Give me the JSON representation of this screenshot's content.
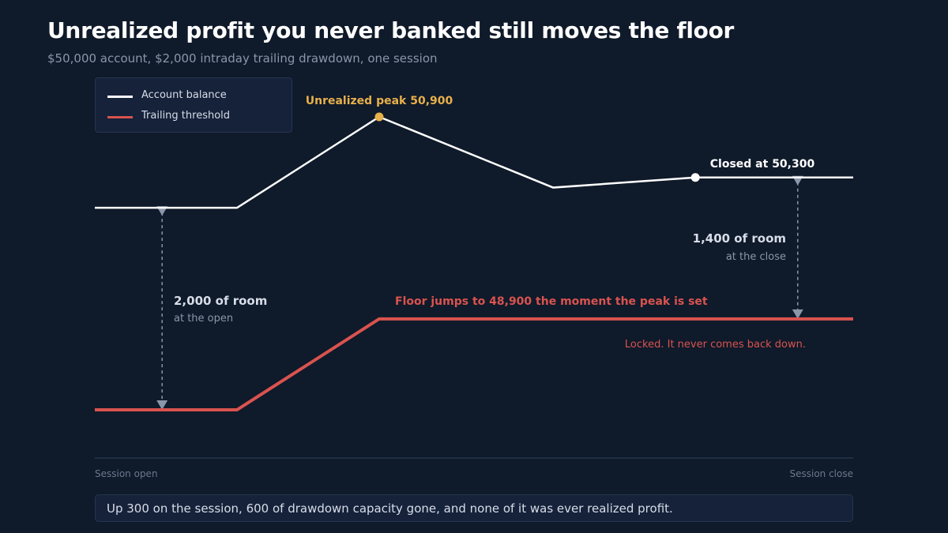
{
  "title": "Unrealized profit you never banked still moves the floor",
  "subtitle": "$50,000 account, $2,000 intraday trailing drawdown, one session",
  "legend": {
    "balance_label": "Account balance",
    "threshold_label": "Trailing threshold"
  },
  "colors": {
    "background": "#0f1a2a",
    "balance": "#ffffff",
    "threshold": "#d9534f",
    "peak": "#e8b04b",
    "annotation_muted": "#8a97aa"
  },
  "chart_data": {
    "type": "line",
    "x_range": [
      0,
      16
    ],
    "y_range": [
      48000,
      50900
    ],
    "x_labels": {
      "start": "Session open",
      "end": "Session close"
    },
    "series": [
      {
        "name": "Account balance",
        "points": [
          [
            0,
            50000
          ],
          [
            3,
            50000
          ],
          [
            6,
            50900
          ],
          [
            9.67,
            50200
          ],
          [
            12.67,
            50300
          ],
          [
            16,
            50300
          ]
        ]
      },
      {
        "name": "Trailing threshold",
        "points": [
          [
            0,
            48000
          ],
          [
            3,
            48000
          ],
          [
            6,
            48900
          ],
          [
            16,
            48900
          ]
        ]
      }
    ],
    "markers": [
      {
        "name": "peak",
        "x": 6,
        "y": 50900
      },
      {
        "name": "close",
        "x": 12.67,
        "y": 50300
      }
    ],
    "gaps": [
      {
        "name": "open-gap",
        "x": 1.42,
        "y_top": 50000,
        "y_bottom": 48000
      },
      {
        "name": "close-gap",
        "x": 14.83,
        "y_top": 50300,
        "y_bottom": 48900
      }
    ],
    "annotations": {
      "peak": "Unrealized peak 50,900",
      "closed": "Closed at 50,300",
      "open_room": "2,000 of room",
      "open_room_sub": "at the open",
      "close_room": "1,400 of room",
      "close_room_sub": "at the close",
      "floor_jump": "Floor jumps to 48,900 the moment the peak is set",
      "locked": "Locked. It never comes back down."
    }
  },
  "footer": "Up 300 on the session, 600 of drawdown capacity gone, and none of it was ever realized profit."
}
